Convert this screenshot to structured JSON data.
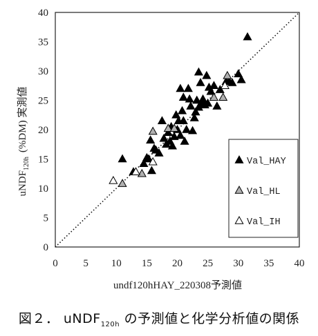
{
  "chart_data": {
    "type": "scatter",
    "xlabel": "undf120hHAY_220308予測値",
    "ylabel_main": "uNDF",
    "ylabel_sub": "120h",
    "ylabel_rest": "(%DM) 実測値",
    "xlim": [
      0,
      40
    ],
    "ylim": [
      0,
      40
    ],
    "xticks": [
      "0",
      "5",
      "10",
      "15",
      "20",
      "25",
      "30",
      "35",
      "40"
    ],
    "yticks": [
      "0",
      "5",
      "10",
      "15",
      "20",
      "25",
      "30",
      "35",
      "40"
    ],
    "reference_line": "y = x (dotted)",
    "grid": false,
    "legend_position": "right-inside",
    "series": [
      {
        "name": "Val_HAY",
        "marker": "filled-triangle",
        "color": "#000000",
        "points": [
          [
            11.0,
            15.0
          ],
          [
            12.8,
            12.8
          ],
          [
            14.5,
            14.2
          ],
          [
            15.0,
            15.2
          ],
          [
            15.3,
            15.0
          ],
          [
            15.6,
            18.2
          ],
          [
            15.8,
            13.0
          ],
          [
            16.2,
            16.8
          ],
          [
            16.5,
            16.5
          ],
          [
            17.0,
            16.0
          ],
          [
            17.5,
            21.5
          ],
          [
            17.8,
            18.5
          ],
          [
            18.2,
            17.5
          ],
          [
            18.5,
            19.5
          ],
          [
            18.8,
            18.0
          ],
          [
            19.0,
            20.5
          ],
          [
            19.2,
            17.2
          ],
          [
            19.5,
            18.8
          ],
          [
            19.8,
            22.5
          ],
          [
            20.0,
            20.0
          ],
          [
            20.2,
            21.5
          ],
          [
            20.5,
            19.0
          ],
          [
            20.5,
            27.0
          ],
          [
            20.8,
            23.2
          ],
          [
            21.0,
            21.5
          ],
          [
            21.0,
            25.5
          ],
          [
            21.2,
            18.0
          ],
          [
            21.5,
            20.0
          ],
          [
            21.8,
            27.0
          ],
          [
            22.0,
            25.2
          ],
          [
            22.2,
            24.0
          ],
          [
            22.5,
            19.8
          ],
          [
            22.8,
            22.0
          ],
          [
            23.0,
            23.0
          ],
          [
            23.2,
            25.0
          ],
          [
            23.5,
            23.8
          ],
          [
            23.5,
            29.8
          ],
          [
            23.8,
            28.0
          ],
          [
            24.0,
            24.5
          ],
          [
            24.2,
            25.2
          ],
          [
            24.5,
            24.2
          ],
          [
            24.8,
            29.2
          ],
          [
            25.0,
            24.5
          ],
          [
            25.2,
            27.2
          ],
          [
            25.5,
            26.5
          ],
          [
            26.0,
            27.5
          ],
          [
            26.5,
            24.0
          ],
          [
            27.0,
            26.8
          ],
          [
            28.0,
            28.2
          ],
          [
            28.5,
            28.2
          ],
          [
            29.0,
            28.0
          ],
          [
            30.0,
            29.5
          ],
          [
            30.5,
            28.5
          ],
          [
            31.5,
            35.8
          ]
        ]
      },
      {
        "name": "Val_HL",
        "marker": "gray-triangle",
        "color": "#b0b0b0",
        "points": [
          [
            11.0,
            10.8
          ],
          [
            14.2,
            12.5
          ],
          [
            16.0,
            19.7
          ],
          [
            18.5,
            20.2
          ],
          [
            19.5,
            20.2
          ],
          [
            26.0,
            25.5
          ],
          [
            27.5,
            25.5
          ],
          [
            28.2,
            29.2
          ]
        ]
      },
      {
        "name": "Val_IH",
        "marker": "open-triangle",
        "color": "#ffffff",
        "points": [
          [
            9.5,
            11.3
          ],
          [
            13.2,
            12.8
          ],
          [
            16.0,
            14.5
          ],
          [
            27.8,
            27.5
          ]
        ]
      }
    ]
  },
  "caption": {
    "prefix": "図２． uNDF",
    "sub": "120h",
    "suffix": " の予測値と化学分析値の関係"
  }
}
